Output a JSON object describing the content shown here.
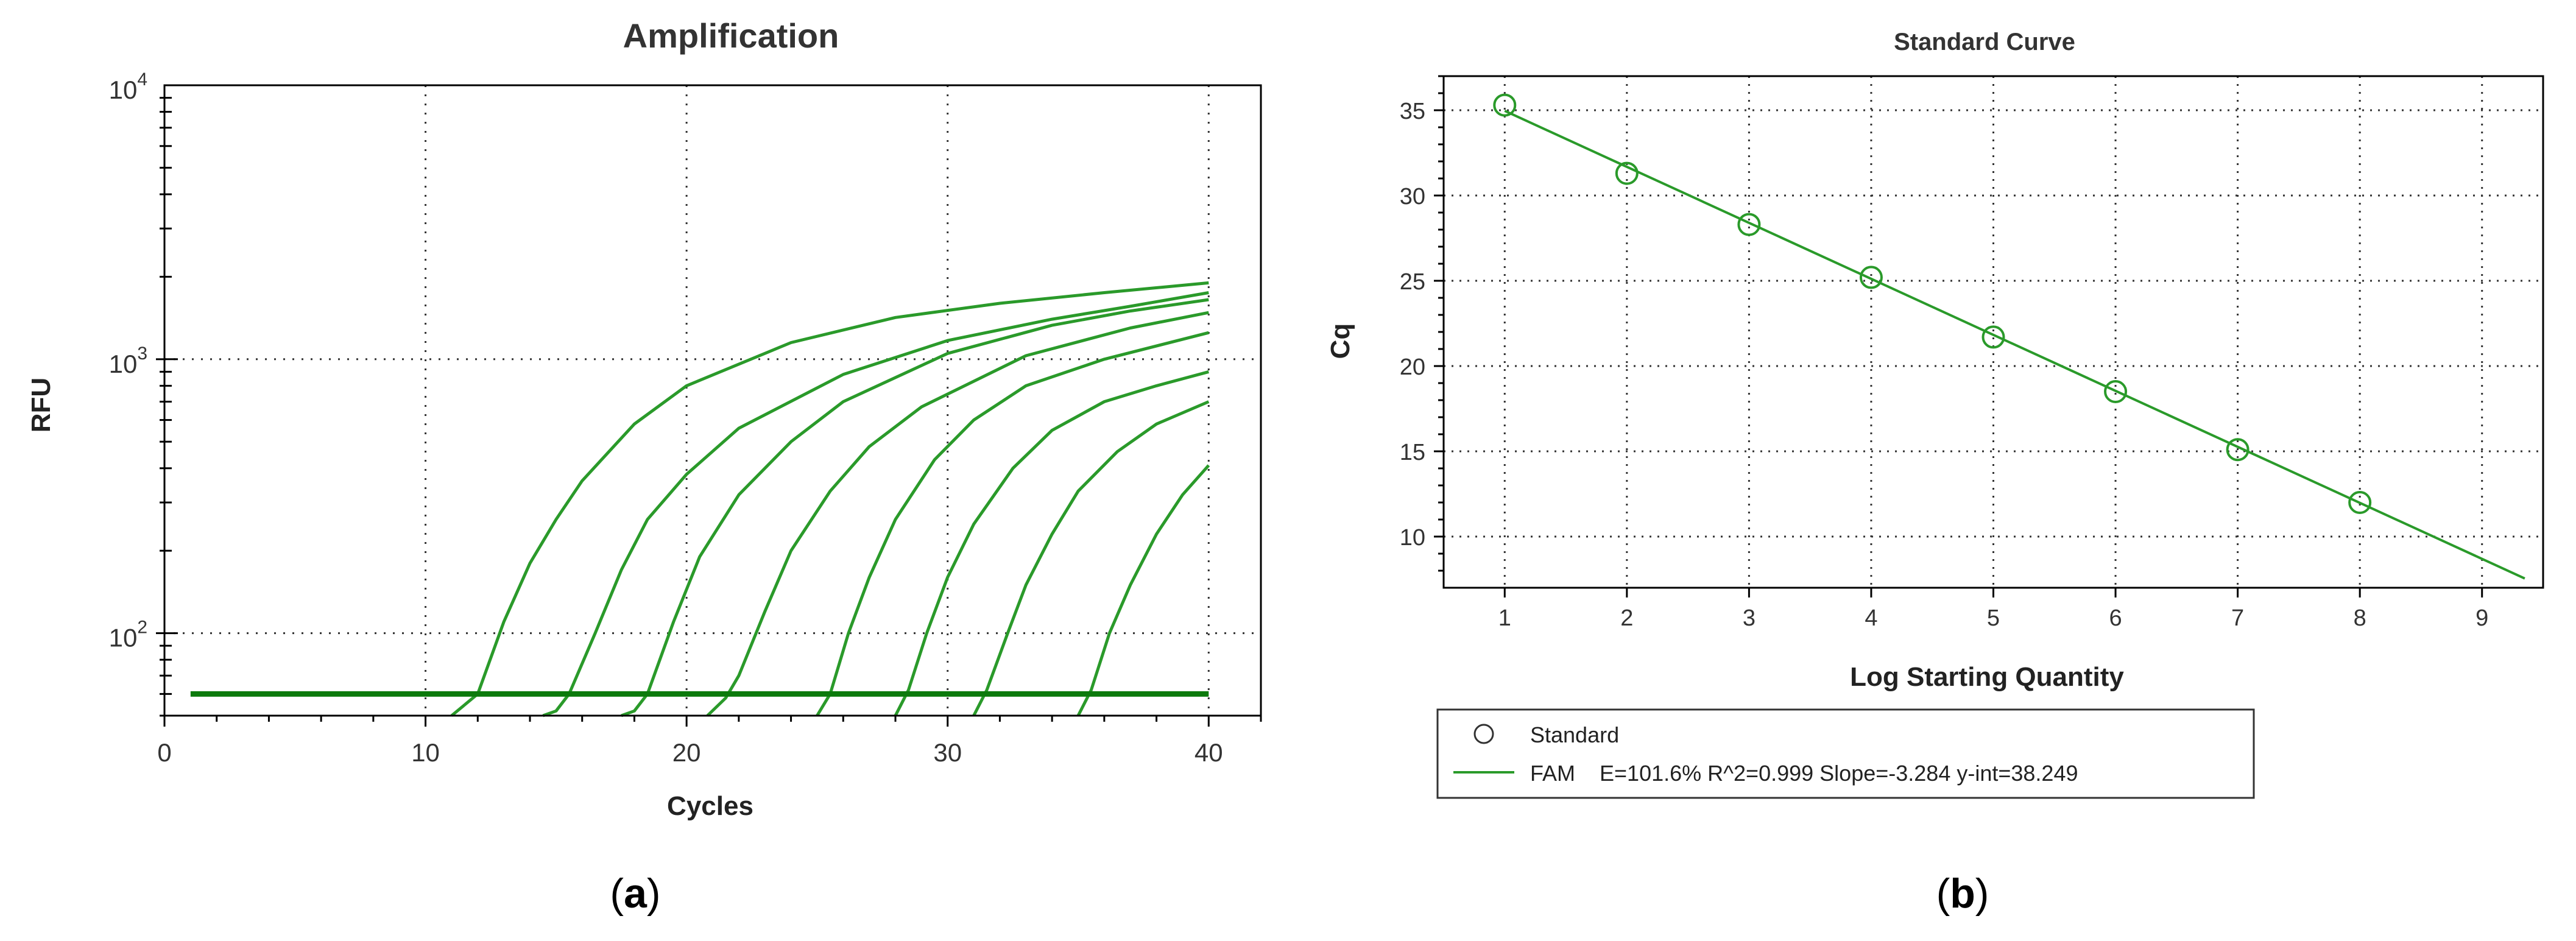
{
  "colors": {
    "series": "#2a9a2a",
    "threshold": "#0c7a0c",
    "grid": "#333333",
    "axis": "#000000",
    "background": "#ffffff"
  },
  "panels": {
    "a": {
      "caption_prefix": "(",
      "caption_letter": "a",
      "caption_suffix": ")"
    },
    "b": {
      "caption_prefix": "(",
      "caption_letter": "b",
      "caption_suffix": ")"
    }
  },
  "chart_data": [
    {
      "type": "line",
      "title": "Amplification",
      "xlabel": "Cycles",
      "ylabel": "RFU",
      "xlim": [
        0,
        42
      ],
      "ylim": [
        50,
        10000
      ],
      "y_scale": "log",
      "x_ticks": [
        "0",
        "10",
        "20",
        "30",
        "40"
      ],
      "y_ticks": [
        {
          "base": "10",
          "exp": "2"
        },
        {
          "base": "10",
          "exp": "3"
        },
        {
          "base": "10",
          "exp": "4"
        }
      ],
      "grid": true,
      "legend": "none",
      "threshold": {
        "y": 60,
        "x_range": [
          1,
          40
        ]
      },
      "series": [
        {
          "x": [
            11,
            12,
            13,
            14,
            15,
            16,
            18,
            20,
            24,
            28,
            32,
            36,
            40
          ],
          "y": [
            50,
            60,
            110,
            180,
            260,
            360,
            580,
            800,
            1150,
            1420,
            1600,
            1750,
            1900
          ]
        },
        {
          "x": [
            14.5,
            15,
            15.5,
            16.5,
            17.5,
            18.5,
            20,
            22,
            26,
            30,
            34,
            37,
            40
          ],
          "y": [
            50,
            52,
            60,
            100,
            170,
            260,
            380,
            560,
            880,
            1170,
            1400,
            1560,
            1750
          ]
        },
        {
          "x": [
            17.5,
            18,
            18.5,
            19.5,
            20.5,
            22,
            24,
            26,
            30,
            34,
            37,
            40
          ],
          "y": [
            50,
            52,
            60,
            110,
            190,
            320,
            500,
            700,
            1050,
            1330,
            1500,
            1650
          ]
        },
        {
          "x": [
            20.8,
            21.5,
            22,
            23,
            24,
            25.5,
            27,
            29,
            33,
            37,
            40
          ],
          "y": [
            50,
            58,
            70,
            120,
            200,
            330,
            480,
            670,
            1030,
            1300,
            1480
          ]
        },
        {
          "x": [
            25,
            25.5,
            26.2,
            27,
            28,
            29.5,
            31,
            33,
            36,
            40
          ],
          "y": [
            50,
            60,
            100,
            160,
            260,
            430,
            600,
            800,
            1000,
            1250
          ]
        },
        {
          "x": [
            28,
            28.5,
            29.2,
            30,
            31,
            32.5,
            34,
            36,
            38,
            40
          ],
          "y": [
            50,
            62,
            100,
            160,
            250,
            400,
            550,
            700,
            800,
            900
          ]
        },
        {
          "x": [
            31,
            31.5,
            32.3,
            33,
            34,
            35,
            36.5,
            38,
            40
          ],
          "y": [
            50,
            62,
            100,
            150,
            230,
            330,
            460,
            580,
            700
          ]
        },
        {
          "x": [
            35,
            35.5,
            36.2,
            37,
            38,
            39,
            40
          ],
          "y": [
            50,
            62,
            100,
            150,
            230,
            320,
            410
          ]
        }
      ]
    },
    {
      "type": "scatter",
      "title": "Standard Curve",
      "xlabel": "Log Starting Quantity",
      "ylabel": "Cq",
      "xlim": [
        0.5,
        9.5
      ],
      "ylim": [
        7,
        37
      ],
      "x_ticks": [
        "1",
        "2",
        "3",
        "4",
        "5",
        "6",
        "7",
        "8",
        "9"
      ],
      "y_ticks": [
        "10",
        "15",
        "20",
        "25",
        "30",
        "35"
      ],
      "grid": true,
      "legend": "bottom-left",
      "points": [
        {
          "x": 1,
          "y": 35.3
        },
        {
          "x": 2,
          "y": 31.3
        },
        {
          "x": 3,
          "y": 28.3
        },
        {
          "x": 4,
          "y": 25.2
        },
        {
          "x": 5,
          "y": 21.7
        },
        {
          "x": 6,
          "y": 18.5
        },
        {
          "x": 7,
          "y": 15.1
        },
        {
          "x": 8,
          "y": 12.0
        }
      ],
      "fit_line": {
        "x": [
          1,
          9.35
        ],
        "y": [
          34.965,
          7.544
        ]
      },
      "legend_entries": [
        {
          "marker": "circle",
          "label": "Standard"
        },
        {
          "marker": "line",
          "label": "FAM    E=101.6% R^2=0.999 Slope=-3.284 y-int=38.249"
        }
      ]
    }
  ]
}
